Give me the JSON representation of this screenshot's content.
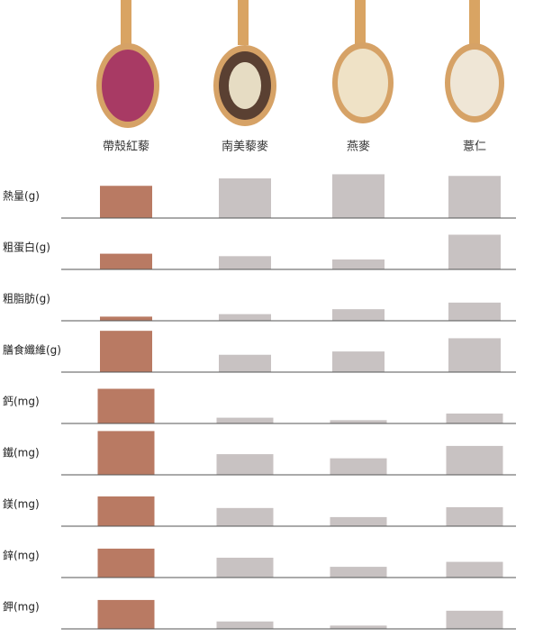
{
  "chart_data": {
    "type": "bar",
    "categories": [
      "帶殼紅藜",
      "南美藜麥",
      "燕麥",
      "薏仁"
    ],
    "colors": [
      "#b97a63",
      "#c8c2c2",
      "#c8c2c2",
      "#c8c2c2"
    ],
    "ylim": [
      0,
      60
    ],
    "panels": [
      {
        "label": "熱量(g)",
        "values": [
          39,
          48,
          53,
          51
        ]
      },
      {
        "label": "粗蛋白(g)",
        "values": [
          19,
          16,
          12,
          42
        ]
      },
      {
        "label": "粗脂肪(g)",
        "values": [
          5,
          8,
          14,
          22
        ]
      },
      {
        "label": "膳食纖維(g)",
        "values": [
          50,
          21,
          25,
          41
        ]
      },
      {
        "label": "鈣(mg)",
        "values": [
          42,
          7,
          4,
          12
        ]
      },
      {
        "label": "鐵(mg)",
        "values": [
          53,
          25,
          20,
          35
        ]
      },
      {
        "label": "鎂(mg)",
        "values": [
          36,
          22,
          11,
          23
        ]
      },
      {
        "label": "鋅(mg)",
        "values": [
          35,
          24,
          13,
          19
        ]
      },
      {
        "label": "鉀(mg)",
        "values": [
          35,
          9,
          4,
          22
        ]
      }
    ]
  }
}
